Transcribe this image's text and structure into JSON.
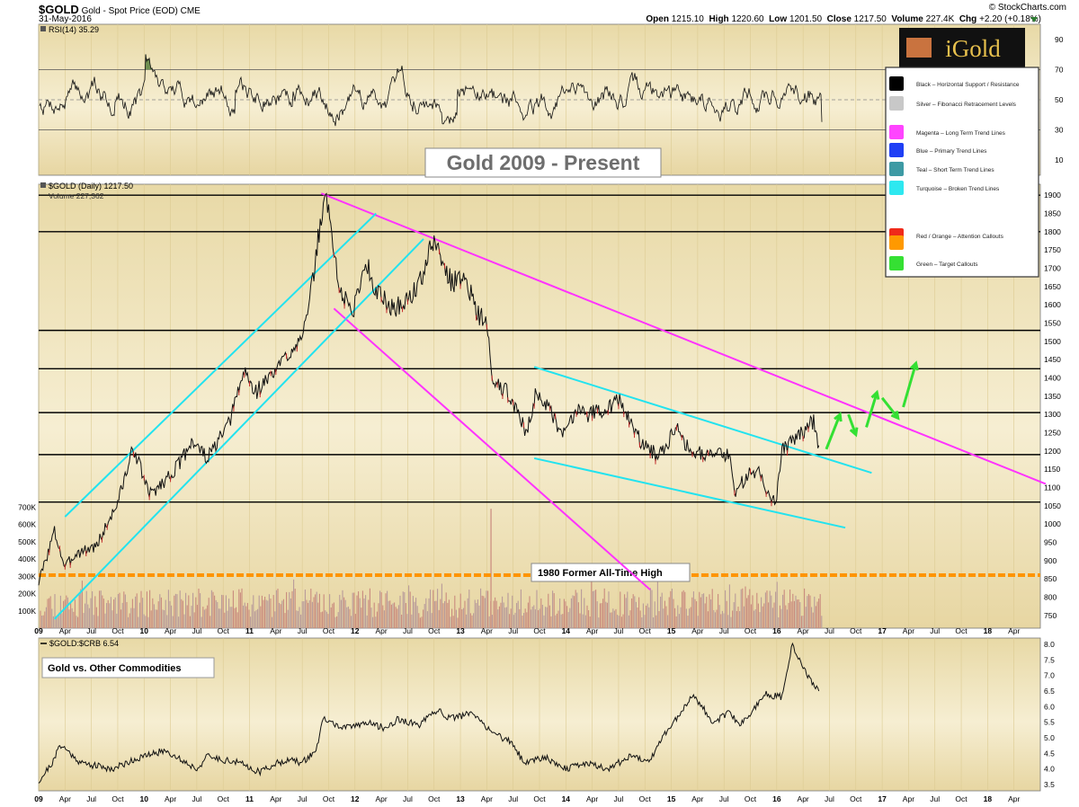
{
  "header": {
    "symbol": "$GOLD",
    "description": "Gold - Spot Price (EOD)",
    "exchange": "CME",
    "date": "31-May-2016",
    "source": "© StockCharts.com",
    "open_label": "Open",
    "open": "1215.10",
    "high_label": "High",
    "high": "1220.60",
    "low_label": "Low",
    "low": "1201.50",
    "close_label": "Close",
    "close": "1217.50",
    "volume_label": "Volume",
    "volume": "227.4K",
    "chg_label": "Chg",
    "chg": "+2.20 (+0.18%)"
  },
  "logo": {
    "text": "iGold"
  },
  "legend": [
    {
      "color": "#000000",
      "label": "Black – Horizontal Support / Resistance"
    },
    {
      "color": "#c8c8c8",
      "label": "Silver – Fibonacci Retracement Levels"
    },
    {
      "color": "#ff44ff",
      "label": "Magenta – Long Term Trend Lines"
    },
    {
      "color": "#1f3ff5",
      "label": "Blue – Primary Trend Lines"
    },
    {
      "color": "#3d9aa4",
      "label": "Teal – Short Term Trend Lines"
    },
    {
      "color": "#2ee8f0",
      "label": "Turquoise – Broken Trend Lines"
    },
    {
      "color": "#f02a1a",
      "label": "Red / Orange – Attention Callouts"
    },
    {
      "color": "#ff9900",
      "label": ""
    },
    {
      "color": "#35e033",
      "label": "Green – Target Callouts"
    }
  ],
  "chart_data": [
    {
      "type": "line",
      "panel": "RSI",
      "title": "RSI(14) 35.29",
      "y_ticks": [
        10,
        30,
        50,
        70,
        90
      ],
      "ylim": [
        0,
        100
      ],
      "reference_lines": [
        30,
        50,
        70
      ],
      "start_value": 48,
      "end_value": 35.29,
      "overlay_title": "Gold 2009 - Present"
    },
    {
      "type": "line",
      "panel": "Price",
      "title": "$GOLD (Daily) 1217.50",
      "volume_title": "Volume 227,362",
      "ylim": [
        715,
        1930
      ],
      "y_ticks": [
        750,
        800,
        850,
        900,
        950,
        1000,
        1050,
        1100,
        1150,
        1200,
        1250,
        1300,
        1350,
        1400,
        1450,
        1500,
        1550,
        1600,
        1650,
        1700,
        1750,
        1800,
        1850,
        1900
      ],
      "volume_ticks": [
        "100K",
        "200K",
        "300K",
        "400K",
        "500K",
        "600K",
        "700K"
      ],
      "volume_tick_values": [
        100000,
        200000,
        300000,
        400000,
        500000,
        600000,
        700000
      ],
      "x_labels": [
        "09",
        "Apr",
        "Jul",
        "Oct",
        "10",
        "Apr",
        "Jul",
        "Oct",
        "11",
        "Apr",
        "Jul",
        "Oct",
        "12",
        "Apr",
        "Jul",
        "Oct",
        "13",
        "Apr",
        "Jul",
        "Oct",
        "14",
        "Apr",
        "Jul",
        "Oct",
        "15",
        "Apr",
        "Jul",
        "Oct",
        "16",
        "Apr",
        "Jul",
        "Oct",
        "17",
        "Apr",
        "Jul",
        "Oct",
        "18",
        "Apr"
      ],
      "x_start": 2009.0,
      "x_end": 2018.5,
      "x_values": [
        2009.0,
        2009.15,
        2009.25,
        2009.35,
        2009.55,
        2009.75,
        2009.9,
        2010.05,
        2010.2,
        2010.35,
        2010.45,
        2010.6,
        2010.8,
        2010.95,
        2011.05,
        2011.25,
        2011.45,
        2011.55,
        2011.67,
        2011.72,
        2011.78,
        2011.85,
        2011.98,
        2012.05,
        2012.1,
        2012.2,
        2012.35,
        2012.45,
        2012.6,
        2012.75,
        2012.82,
        2012.92,
        2013.05,
        2013.15,
        2013.25,
        2013.3,
        2013.36,
        2013.48,
        2013.62,
        2013.72,
        2013.83,
        2013.95,
        2014.15,
        2014.2,
        2014.4,
        2014.5,
        2014.7,
        2014.85,
        2014.93,
        2015.05,
        2015.15,
        2015.35,
        2015.55,
        2015.6,
        2015.75,
        2015.85,
        2015.95,
        2016.0,
        2016.05,
        2016.2,
        2016.3,
        2016.35,
        2016.4
      ],
      "close_values": [
        840,
        980,
        880,
        920,
        940,
        1060,
        1210,
        1080,
        1120,
        1170,
        1230,
        1180,
        1270,
        1420,
        1360,
        1420,
        1500,
        1560,
        1820,
        1900,
        1800,
        1640,
        1580,
        1660,
        1720,
        1640,
        1590,
        1600,
        1650,
        1780,
        1720,
        1660,
        1680,
        1580,
        1550,
        1390,
        1380,
        1350,
        1250,
        1360,
        1320,
        1240,
        1330,
        1300,
        1320,
        1340,
        1230,
        1190,
        1200,
        1280,
        1210,
        1190,
        1190,
        1090,
        1140,
        1140,
        1060,
        1080,
        1200,
        1240,
        1270,
        1280,
        1215
      ],
      "horizontal_lines": [
        1900,
        1800,
        1530,
        1425,
        1305,
        1190,
        1060
      ],
      "orange_line": 860,
      "annotation": "1980 Former All-Time High",
      "magenta_lines": [
        [
          2011.68,
          1905,
          2018.55,
          1110
        ],
        [
          2011.8,
          1590,
          2014.8,
          820
        ]
      ],
      "turquoise_lines": [
        [
          2009.25,
          1020,
          2012.2,
          1850
        ],
        [
          2009.15,
          740,
          2012.65,
          1780
        ],
        [
          2013.7,
          1430,
          2016.9,
          1140
        ],
        [
          2013.7,
          1180,
          2016.65,
          990
        ]
      ],
      "green_arrows": [
        [
          2016.47,
          1205,
          2016.6,
          1300
        ],
        [
          2016.68,
          1300,
          2016.75,
          1245
        ],
        [
          2016.85,
          1265,
          2016.95,
          1360
        ],
        [
          2017.0,
          1345,
          2017.15,
          1290
        ],
        [
          2017.2,
          1320,
          2017.32,
          1440
        ]
      ]
    },
    {
      "type": "line",
      "panel": "Ratio",
      "title": "$GOLD:$CRB 6.54",
      "panel_label": "Gold vs. Other Commodities",
      "ylim": [
        3.3,
        8.2
      ],
      "y_ticks": [
        3.5,
        4.0,
        4.5,
        5.0,
        5.5,
        6.0,
        6.5,
        7.0,
        7.5,
        8.0
      ],
      "x_values": [
        2009.0,
        2009.15,
        2009.2,
        2009.4,
        2009.7,
        2009.9,
        2010.2,
        2010.5,
        2010.6,
        2010.9,
        2011.1,
        2011.2,
        2011.35,
        2011.5,
        2011.63,
        2011.7,
        2011.9,
        2012.1,
        2012.3,
        2012.4,
        2012.6,
        2012.8,
        2012.9,
        2013.1,
        2013.3,
        2013.5,
        2013.6,
        2013.8,
        2014.0,
        2014.2,
        2014.4,
        2014.6,
        2014.8,
        2014.95,
        2015.05,
        2015.2,
        2015.4,
        2015.55,
        2015.65,
        2015.8,
        2015.9,
        2016.05,
        2016.15,
        2016.25,
        2016.4
      ],
      "y_values": [
        3.6,
        4.3,
        4.8,
        4.2,
        4.0,
        4.3,
        4.6,
        4.0,
        4.4,
        4.2,
        3.9,
        4.1,
        4.3,
        4.2,
        4.6,
        5.6,
        5.3,
        5.5,
        5.3,
        5.6,
        5.4,
        5.9,
        5.6,
        5.8,
        5.2,
        4.8,
        4.2,
        4.4,
        4.0,
        4.2,
        4.0,
        4.4,
        4.3,
        5.2,
        5.6,
        6.4,
        5.5,
        5.8,
        5.4,
        6.0,
        6.4,
        6.3,
        8.0,
        7.2,
        6.5
      ]
    }
  ]
}
